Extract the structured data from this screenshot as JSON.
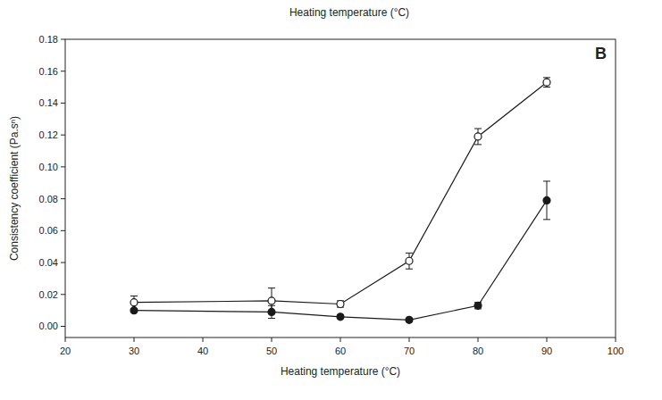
{
  "chart_data": {
    "type": "line",
    "title": "Heating temperature (°C)",
    "x_label": "Heating temperature (°C)",
    "y_label": "Consistency coefficient (Pa.sⁿ)",
    "panel_label": "B",
    "x": [
      30,
      50,
      60,
      70,
      80,
      90
    ],
    "series": [
      {
        "color": "#1a1a1a",
        "marker": "open-circle",
        "line_style": "solid",
        "values": [
          0.015,
          0.016,
          0.014,
          0.041,
          0.119,
          0.153
        ],
        "errors": [
          0.004,
          0.008,
          0.002,
          0.005,
          0.005,
          0.003
        ]
      },
      {
        "color": "#1a1a1a",
        "marker": "filled-circle",
        "line_style": "solid",
        "values": [
          0.01,
          0.009,
          0.006,
          0.004,
          0.013,
          0.079
        ],
        "errors": [
          0.001,
          0.004,
          0.001,
          0.001,
          0.002,
          0.012
        ]
      }
    ],
    "xlim": [
      20,
      100
    ],
    "xticks": [
      20,
      30,
      40,
      50,
      60,
      70,
      80,
      90,
      100
    ],
    "ylim": [
      -0.007,
      0.18
    ],
    "yticks": [
      {
        "value": 0,
        "label": "0.00"
      },
      {
        "value": 0.02,
        "label": "0.02"
      },
      {
        "value": 0.04,
        "label": "0.04"
      },
      {
        "value": 0.06,
        "label": "0.06"
      },
      {
        "value": 0.08,
        "label": "0.08"
      },
      {
        "value": 0.1,
        "label": "0.10"
      },
      {
        "value": 0.12,
        "label": "0.12"
      },
      {
        "value": 0.14,
        "label": "0.14"
      },
      {
        "value": 0.16,
        "label": "0.16"
      },
      {
        "value": 0.18,
        "label": "0.18"
      }
    ],
    "grid": false
  }
}
